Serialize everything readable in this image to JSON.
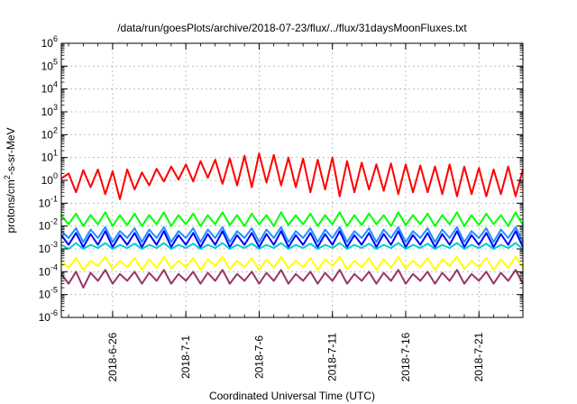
{
  "chart_data": {
    "type": "line",
    "title": "/data/run/goesPlots/archive/2018-07-23/flux/../flux/31daysMoonFluxes.txt",
    "xlabel": "Coordinated Universal Time (UTC)",
    "ylabel": {
      "pre": "protons/cm",
      "sup": "2",
      "post": "-s-sr-MeV"
    },
    "yscale": "log",
    "ylim_exp": [
      -6,
      6
    ],
    "ytick_exps": [
      -6,
      -5,
      -4,
      -3,
      -2,
      -1,
      0,
      1,
      2,
      3,
      4,
      5,
      6
    ],
    "ytick_base": "10",
    "xlim": [
      "2018-06-22T12:00",
      "2018-07-24T00:00"
    ],
    "xticks": [
      {
        "date": "2018-06-26",
        "label": "2018-6-26"
      },
      {
        "date": "2018-07-01",
        "label": "2018-7-1"
      },
      {
        "date": "2018-07-06",
        "label": "2018-7-6"
      },
      {
        "date": "2018-07-11",
        "label": "2018-7-11"
      },
      {
        "date": "2018-07-16",
        "label": "2018-7-16"
      },
      {
        "date": "2018-07-21",
        "label": "2018-7-21"
      }
    ],
    "grid": true,
    "series": [
      {
        "color": "#ff0000",
        "x_start": "2018-06-22T12:00",
        "step_hours": 12,
        "y": [
          1.2,
          2.0,
          0.3,
          2.8,
          0.5,
          3.0,
          0.25,
          2.5,
          0.15,
          3.0,
          0.4,
          2.2,
          0.6,
          3.2,
          0.9,
          4.0,
          1.1,
          5.0,
          0.9,
          7.0,
          1.3,
          8.0,
          0.7,
          9.0,
          0.6,
          12.0,
          0.5,
          15.0,
          0.8,
          13.0,
          0.6,
          10.0,
          0.5,
          9.0,
          0.3,
          8.0,
          0.4,
          10.0,
          0.2,
          7.0,
          0.3,
          6.0,
          0.4,
          5.0,
          0.35,
          5.5,
          0.25,
          5.0,
          0.3,
          4.5,
          0.3,
          4.0,
          0.25,
          5.0,
          0.2,
          4.0,
          0.25,
          3.5,
          0.2,
          3.0,
          0.25,
          4.0,
          0.2,
          3.0
        ]
      },
      {
        "color": "#00ff00",
        "x_start": "2018-06-22T12:00",
        "step_hours": 12,
        "y": [
          0.03,
          0.012,
          0.035,
          0.01,
          0.03,
          0.012,
          0.04,
          0.01,
          0.03,
          0.011,
          0.035,
          0.01,
          0.03,
          0.012,
          0.04,
          0.01,
          0.03,
          0.012,
          0.035,
          0.01,
          0.03,
          0.012,
          0.04,
          0.011,
          0.03,
          0.01,
          0.035,
          0.012,
          0.03,
          0.01,
          0.04,
          0.011,
          0.03,
          0.012,
          0.035,
          0.01,
          0.03,
          0.012,
          0.04,
          0.01,
          0.03,
          0.011,
          0.035,
          0.012,
          0.03,
          0.01,
          0.04,
          0.011,
          0.03,
          0.012,
          0.035,
          0.01,
          0.03,
          0.012,
          0.04,
          0.01,
          0.03,
          0.011,
          0.035,
          0.012,
          0.03,
          0.01,
          0.04,
          0.011
        ]
      },
      {
        "color": "#1e90ff",
        "x_start": "2018-06-22T12:00",
        "step_hours": 12,
        "y": [
          0.006,
          0.003,
          0.008,
          0.002,
          0.007,
          0.003,
          0.009,
          0.002,
          0.006,
          0.003,
          0.008,
          0.002,
          0.007,
          0.003,
          0.009,
          0.002,
          0.006,
          0.003,
          0.008,
          0.002,
          0.007,
          0.003,
          0.009,
          0.002,
          0.006,
          0.003,
          0.008,
          0.002,
          0.007,
          0.003,
          0.009,
          0.002,
          0.006,
          0.003,
          0.008,
          0.002,
          0.007,
          0.003,
          0.009,
          0.002,
          0.006,
          0.003,
          0.008,
          0.002,
          0.007,
          0.003,
          0.009,
          0.002,
          0.006,
          0.003,
          0.008,
          0.002,
          0.007,
          0.003,
          0.009,
          0.002,
          0.006,
          0.003,
          0.008,
          0.002,
          0.007,
          0.003,
          0.009,
          0.002
        ]
      },
      {
        "color": "#0000ff",
        "x_start": "2018-06-22T12:00",
        "step_hours": 12,
        "y": [
          0.004,
          0.0015,
          0.005,
          0.0012,
          0.0045,
          0.0015,
          0.006,
          0.0012,
          0.004,
          0.0015,
          0.005,
          0.0012,
          0.0045,
          0.0015,
          0.006,
          0.0012,
          0.004,
          0.0015,
          0.005,
          0.0012,
          0.0045,
          0.0015,
          0.006,
          0.0012,
          0.004,
          0.0015,
          0.005,
          0.0012,
          0.0045,
          0.0015,
          0.006,
          0.0012,
          0.004,
          0.0015,
          0.005,
          0.0012,
          0.0045,
          0.0015,
          0.006,
          0.0012,
          0.004,
          0.0015,
          0.005,
          0.0012,
          0.0045,
          0.0015,
          0.006,
          0.0012,
          0.004,
          0.0015,
          0.005,
          0.0012,
          0.0045,
          0.0015,
          0.006,
          0.0012,
          0.004,
          0.0015,
          0.005,
          0.0012,
          0.0045,
          0.0015,
          0.006,
          0.0012
        ]
      },
      {
        "color": "#00cdcd",
        "x_start": "2018-06-22T12:00",
        "step_hours": 12,
        "y": [
          0.0015,
          0.001,
          0.0018,
          0.001,
          0.0015,
          0.0011,
          0.0018,
          0.001,
          0.0015,
          0.0011,
          0.0017,
          0.001,
          0.0015,
          0.0011,
          0.0018,
          0.001,
          0.0015,
          0.0011,
          0.0017,
          0.001,
          0.0015,
          0.0011,
          0.0018,
          0.001,
          0.0015,
          0.0011,
          0.0017,
          0.001,
          0.0015,
          0.0011,
          0.0018,
          0.001,
          0.0015,
          0.0011,
          0.0017,
          0.001,
          0.0015,
          0.0011,
          0.0018,
          0.001,
          0.0015,
          0.0011,
          0.0017,
          0.001,
          0.0015,
          0.0011,
          0.0018,
          0.001,
          0.0015,
          0.0011,
          0.0017,
          0.001,
          0.0015,
          0.0011,
          0.0018,
          0.001,
          0.0015,
          0.0011,
          0.0017,
          0.001,
          0.0015,
          0.0011,
          0.0018,
          0.001
        ]
      },
      {
        "color": "#ffff00",
        "x_start": "2018-06-22T12:00",
        "step_hours": 12,
        "y": [
          0.0003,
          0.00015,
          0.0004,
          0.00012,
          0.0003,
          0.00018,
          0.00045,
          0.00013,
          0.0003,
          0.00016,
          0.0004,
          0.00012,
          0.00035,
          0.00015,
          0.00045,
          0.00014,
          0.0003,
          0.00016,
          0.0004,
          0.00012,
          0.00035,
          0.00018,
          0.00045,
          0.00013,
          0.0003,
          0.00016,
          0.0004,
          0.00012,
          0.00035,
          0.00015,
          0.00045,
          0.00014,
          0.0003,
          0.00016,
          0.0004,
          0.00012,
          0.00035,
          0.00018,
          0.00045,
          0.00013,
          0.0003,
          0.00016,
          0.0004,
          0.00012,
          0.00035,
          0.00015,
          0.00045,
          0.00014,
          0.0003,
          0.00016,
          0.0004,
          0.00012,
          0.00035,
          0.00018,
          0.00045,
          0.00013,
          0.0003,
          0.00016,
          0.0004,
          0.00012,
          0.00035,
          0.00015,
          0.00045,
          0.00014
        ]
      },
      {
        "color": "#993366",
        "x_start": "2018-06-22T12:00",
        "step_hours": 12,
        "y": [
          8e-05,
          3e-05,
          0.0001,
          2e-05,
          9e-05,
          4e-05,
          0.00012,
          3e-05,
          8e-05,
          4e-05,
          0.0001,
          3e-05,
          9e-05,
          4e-05,
          0.00012,
          3e-05,
          8e-05,
          4e-05,
          0.0001,
          3e-05,
          9e-05,
          4e-05,
          0.00012,
          3e-05,
          8e-05,
          4e-05,
          0.0001,
          3e-05,
          9e-05,
          4e-05,
          0.00012,
          3e-05,
          8e-05,
          4e-05,
          0.0001,
          3e-05,
          9e-05,
          4e-05,
          0.00012,
          3e-05,
          8e-05,
          4e-05,
          0.0001,
          3e-05,
          9e-05,
          4e-05,
          0.00012,
          3e-05,
          8e-05,
          4e-05,
          0.0001,
          3e-05,
          9e-05,
          4e-05,
          0.00012,
          3e-05,
          8e-05,
          4e-05,
          0.0001,
          3e-05,
          9e-05,
          4e-05,
          0.00012,
          3e-05
        ]
      }
    ]
  }
}
